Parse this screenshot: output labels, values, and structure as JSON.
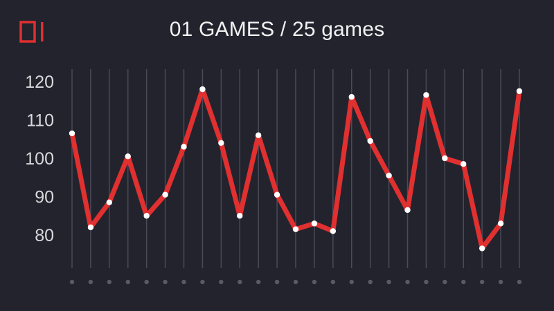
{
  "logo": {
    "text": "01",
    "color": "#e03030"
  },
  "title": "01 GAMES / 25 games",
  "colors": {
    "background": "#23232d",
    "line": "#e03030",
    "grid": "#4a4a58",
    "point": "#ffffff",
    "axis_dot": "#5a5a66"
  },
  "chart_data": {
    "type": "line",
    "title": "01 GAMES / 25 games",
    "xlabel": "",
    "ylabel": "",
    "x": [
      1,
      2,
      3,
      4,
      5,
      6,
      7,
      8,
      9,
      10,
      11,
      12,
      13,
      14,
      15,
      16,
      17,
      18,
      19,
      20,
      21,
      22,
      23,
      24,
      25
    ],
    "ylim": [
      75,
      123
    ],
    "yticks": [
      80,
      90,
      100,
      110,
      120
    ],
    "grid": {
      "vertical": true,
      "horizontal": false
    },
    "legend": "none",
    "series": [
      {
        "values": [
          106.5,
          82,
          88.5,
          100.5,
          85,
          90.5,
          103,
          118,
          104,
          85,
          106,
          90.5,
          81.5,
          83,
          81,
          116,
          104.5,
          95.5,
          86.5,
          116.5,
          100,
          98.5,
          76.5,
          83,
          117.5
        ]
      }
    ]
  }
}
